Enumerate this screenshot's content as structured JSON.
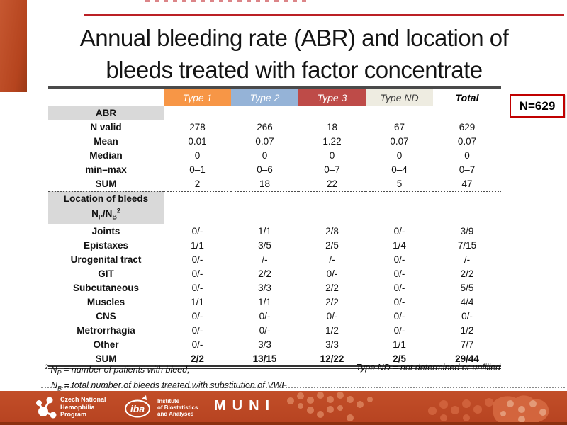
{
  "slide": {
    "title_line1": "Annual bleeding rate (ABR) and location of",
    "title_line2": "bleeds treated with factor concentrate",
    "n_badge": "N=629"
  },
  "colors": {
    "accent_rule_red": "#BB2025",
    "badge_border_red": "#C00000",
    "type1_orange": "#F79646",
    "type2_blue": "#95B3D7",
    "type3_red": "#BE4B48",
    "type_nd_beige": "#EEECE1",
    "section_gray": "#D9D9D9",
    "banner_red": "#BC4A24"
  },
  "table": {
    "columns": [
      "Type 1",
      "Type 2",
      "Type 3",
      "Type ND",
      "Total"
    ],
    "abr": {
      "section_label": "ABR",
      "rows": [
        {
          "label": "N valid",
          "values": [
            "278",
            "266",
            "18",
            "67",
            "629"
          ]
        },
        {
          "label": "Mean",
          "values": [
            "0.01",
            "0.07",
            "1.22",
            "0.07",
            "0.07"
          ]
        },
        {
          "label": "Median",
          "values": [
            "0",
            "0",
            "0",
            "0",
            "0"
          ]
        },
        {
          "label": "min–max",
          "values": [
            "0–1",
            "0–6",
            "0–7",
            "0–4",
            "0–7"
          ]
        },
        {
          "label": "SUM",
          "values": [
            "2",
            "18",
            "22",
            "5",
            "47"
          ]
        }
      ]
    },
    "location": {
      "section_label_line1": "Location of bleeds",
      "lbl": {
        "n": "N",
        "p": "P",
        "slash_n": "/N",
        "b": "B",
        "sup2": "2"
      },
      "rows": [
        {
          "label": "Joints",
          "values": [
            "0/-",
            "1/1",
            "2/8",
            "0/-",
            "3/9"
          ]
        },
        {
          "label": "Epistaxes",
          "values": [
            "1/1",
            "3/5",
            "2/5",
            "1/4",
            "7/15"
          ]
        },
        {
          "label": "Urogenital tract",
          "values": [
            "0/-",
            "/-",
            "/-",
            "0/-",
            "/-"
          ]
        },
        {
          "label": "GIT",
          "values": [
            "0/-",
            "2/2",
            "0/-",
            "0/-",
            "2/2"
          ]
        },
        {
          "label": "Subcutaneous",
          "values": [
            "0/-",
            "3/3",
            "2/2",
            "0/-",
            "5/5"
          ]
        },
        {
          "label": "Muscles",
          "values": [
            "1/1",
            "1/1",
            "2/2",
            "0/-",
            "4/4"
          ]
        },
        {
          "label": "CNS",
          "values": [
            "0/-",
            "0/-",
            "0/-",
            "0/-",
            "0/-"
          ]
        },
        {
          "label": "Metrorrhagia",
          "values": [
            "0/-",
            "0/-",
            "1/2",
            "0/-",
            "1/2"
          ]
        },
        {
          "label": "Other",
          "values": [
            "0/-",
            "3/3",
            "3/3",
            "1/1",
            "7/7"
          ]
        },
        {
          "label": "SUM",
          "values": [
            "2/2",
            "13/15",
            "12/22",
            "2/5",
            "29/44"
          ],
          "bold": true
        }
      ]
    }
  },
  "footnotes": {
    "sup2": "2",
    "np_n": " N",
    "np_sub": "P",
    "np_text": " = number of patients with bleed;",
    "nb_n": "N",
    "nb_sub": "B",
    "nb_text": " = total number of bleeds treated with substitution of VWF",
    "right": "Type ND = not determined or unfilled"
  },
  "footer": {
    "cnhp": {
      "line1": "Czech National",
      "line2": "Hemophilia",
      "line3": "Program"
    },
    "iba": {
      "abbr": "iba",
      "line1": "Institute",
      "line2": "of Biostatistics",
      "line3": "and Analyses"
    },
    "muni": "MUNI"
  }
}
